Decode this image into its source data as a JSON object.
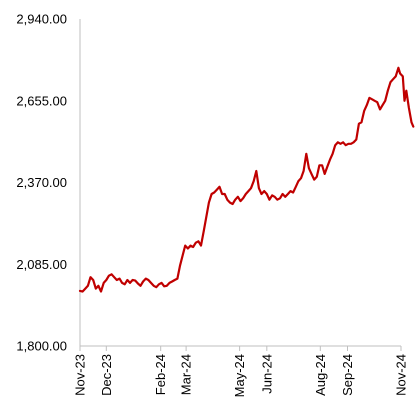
{
  "chart_data": {
    "type": "line",
    "title": "",
    "xlabel": "",
    "ylabel": "",
    "ylim": [
      1800,
      2940
    ],
    "y_ticks": [
      1800,
      2085,
      2370,
      2655,
      2940
    ],
    "y_tick_labels": [
      "1,800.00",
      "2,085.00",
      "2,370.00",
      "2,655.00",
      "2,940.00"
    ],
    "x_ticks": [
      "2023-11-01",
      "2023-12-01",
      "2024-02-01",
      "2024-03-01",
      "2024-05-01",
      "2024-06-01",
      "2024-08-01",
      "2024-09-01",
      "2024-11-01"
    ],
    "x_tick_labels": [
      "Nov-23",
      "Dec-23",
      "Feb-24",
      "Mar-24",
      "May-24",
      "Jun-24",
      "Aug-24",
      "Sep-24",
      "Nov-24"
    ],
    "grid": false,
    "legend": "none",
    "line_color": "#C00000",
    "series": [
      {
        "values": [
          [
            "2023-11-01",
            1992
          ],
          [
            "2023-11-04",
            1990
          ],
          [
            "2023-11-07",
            2000
          ],
          [
            "2023-11-10",
            2010
          ],
          [
            "2023-11-13",
            2040
          ],
          [
            "2023-11-16",
            2030
          ],
          [
            "2023-11-19",
            2000
          ],
          [
            "2023-11-22",
            2010
          ],
          [
            "2023-11-25",
            1990
          ],
          [
            "2023-11-28",
            2020
          ],
          [
            "2023-12-01",
            2030
          ],
          [
            "2023-12-04",
            2045
          ],
          [
            "2023-12-07",
            2050
          ],
          [
            "2023-12-10",
            2040
          ],
          [
            "2023-12-13",
            2030
          ],
          [
            "2023-12-16",
            2035
          ],
          [
            "2023-12-19",
            2020
          ],
          [
            "2023-12-22",
            2015
          ],
          [
            "2023-12-25",
            2030
          ],
          [
            "2023-12-28",
            2020
          ],
          [
            "2023-12-31",
            2030
          ],
          [
            "2024-01-03",
            2028
          ],
          [
            "2024-01-06",
            2018
          ],
          [
            "2024-01-09",
            2010
          ],
          [
            "2024-01-12",
            2025
          ],
          [
            "2024-01-15",
            2035
          ],
          [
            "2024-01-18",
            2030
          ],
          [
            "2024-01-21",
            2020
          ],
          [
            "2024-01-24",
            2010
          ],
          [
            "2024-01-27",
            2005
          ],
          [
            "2024-01-30",
            2015
          ],
          [
            "2024-02-02",
            2020
          ],
          [
            "2024-02-05",
            2008
          ],
          [
            "2024-02-08",
            2010
          ],
          [
            "2024-02-11",
            2020
          ],
          [
            "2024-02-14",
            2025
          ],
          [
            "2024-02-17",
            2030
          ],
          [
            "2024-02-20",
            2035
          ],
          [
            "2024-02-23",
            2080
          ],
          [
            "2024-02-26",
            2115
          ],
          [
            "2024-02-29",
            2150
          ],
          [
            "2024-03-03",
            2140
          ],
          [
            "2024-03-06",
            2150
          ],
          [
            "2024-03-09",
            2145
          ],
          [
            "2024-03-12",
            2160
          ],
          [
            "2024-03-15",
            2165
          ],
          [
            "2024-03-18",
            2150
          ],
          [
            "2024-03-21",
            2200
          ],
          [
            "2024-03-24",
            2250
          ],
          [
            "2024-03-27",
            2300
          ],
          [
            "2024-03-30",
            2330
          ],
          [
            "2024-04-02",
            2335
          ],
          [
            "2024-04-05",
            2345
          ],
          [
            "2024-04-08",
            2355
          ],
          [
            "2024-04-11",
            2330
          ],
          [
            "2024-04-14",
            2330
          ],
          [
            "2024-04-17",
            2310
          ],
          [
            "2024-04-20",
            2300
          ],
          [
            "2024-04-23",
            2295
          ],
          [
            "2024-04-26",
            2310
          ],
          [
            "2024-04-29",
            2320
          ],
          [
            "2024-05-02",
            2305
          ],
          [
            "2024-05-05",
            2315
          ],
          [
            "2024-05-08",
            2330
          ],
          [
            "2024-05-11",
            2340
          ],
          [
            "2024-05-14",
            2350
          ],
          [
            "2024-05-17",
            2375
          ],
          [
            "2024-05-20",
            2410
          ],
          [
            "2024-05-23",
            2350
          ],
          [
            "2024-05-26",
            2330
          ],
          [
            "2024-05-29",
            2340
          ],
          [
            "2024-06-01",
            2330
          ],
          [
            "2024-06-04",
            2310
          ],
          [
            "2024-06-07",
            2325
          ],
          [
            "2024-06-10",
            2320
          ],
          [
            "2024-06-13",
            2310
          ],
          [
            "2024-06-16",
            2315
          ],
          [
            "2024-06-19",
            2330
          ],
          [
            "2024-06-22",
            2320
          ],
          [
            "2024-06-25",
            2330
          ],
          [
            "2024-06-28",
            2340
          ],
          [
            "2024-07-01",
            2335
          ],
          [
            "2024-07-04",
            2355
          ],
          [
            "2024-07-07",
            2375
          ],
          [
            "2024-07-10",
            2385
          ],
          [
            "2024-07-13",
            2410
          ],
          [
            "2024-07-16",
            2470
          ],
          [
            "2024-07-19",
            2420
          ],
          [
            "2024-07-22",
            2400
          ],
          [
            "2024-07-25",
            2380
          ],
          [
            "2024-07-28",
            2390
          ],
          [
            "2024-07-31",
            2430
          ],
          [
            "2024-08-03",
            2430
          ],
          [
            "2024-08-06",
            2400
          ],
          [
            "2024-08-09",
            2425
          ],
          [
            "2024-08-12",
            2450
          ],
          [
            "2024-08-15",
            2470
          ],
          [
            "2024-08-18",
            2500
          ],
          [
            "2024-08-21",
            2510
          ],
          [
            "2024-08-24",
            2505
          ],
          [
            "2024-08-27",
            2510
          ],
          [
            "2024-08-30",
            2500
          ],
          [
            "2024-09-02",
            2505
          ],
          [
            "2024-09-05",
            2505
          ],
          [
            "2024-09-08",
            2510
          ],
          [
            "2024-09-11",
            2520
          ],
          [
            "2024-09-14",
            2575
          ],
          [
            "2024-09-17",
            2580
          ],
          [
            "2024-09-20",
            2620
          ],
          [
            "2024-09-23",
            2640
          ],
          [
            "2024-09-26",
            2665
          ],
          [
            "2024-09-29",
            2660
          ],
          [
            "2024-10-02",
            2655
          ],
          [
            "2024-10-05",
            2650
          ],
          [
            "2024-10-08",
            2625
          ],
          [
            "2024-10-11",
            2640
          ],
          [
            "2024-10-14",
            2655
          ],
          [
            "2024-10-17",
            2690
          ],
          [
            "2024-10-20",
            2720
          ],
          [
            "2024-10-23",
            2730
          ],
          [
            "2024-10-26",
            2740
          ],
          [
            "2024-10-29",
            2770
          ],
          [
            "2024-10-31",
            2750
          ],
          [
            "2024-11-03",
            2740
          ],
          [
            "2024-11-05",
            2655
          ],
          [
            "2024-11-07",
            2690
          ],
          [
            "2024-11-10",
            2630
          ],
          [
            "2024-11-13",
            2580
          ],
          [
            "2024-11-15",
            2565
          ]
        ]
      }
    ]
  }
}
